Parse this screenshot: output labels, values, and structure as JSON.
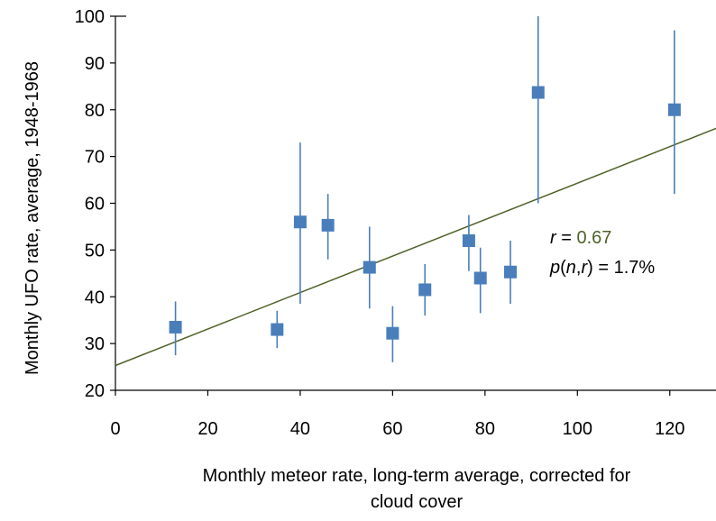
{
  "chart_data": {
    "type": "scatter",
    "title": "",
    "xlabel_lines": [
      "Monthly meteor rate, long-term average, corrected for",
      "cloud cover"
    ],
    "ylabel": "Monthly UFO rate, average, 1948-1968",
    "xlim": [
      0,
      130
    ],
    "ylim": [
      20,
      100
    ],
    "xticks": [
      0,
      20,
      40,
      60,
      80,
      100,
      120
    ],
    "yticks": [
      20,
      30,
      40,
      50,
      60,
      70,
      80,
      90,
      100
    ],
    "grid": false,
    "legend": "none",
    "marker_color": "#4a7ebb",
    "trend_color": "#4f6228",
    "points": [
      {
        "x": 13,
        "y": 33.5,
        "ylow": 27.5,
        "yhigh": 39
      },
      {
        "x": 35,
        "y": 33,
        "ylow": 29,
        "yhigh": 37
      },
      {
        "x": 40,
        "y": 56,
        "ylow": 38.5,
        "yhigh": 73
      },
      {
        "x": 46,
        "y": 55.3,
        "ylow": 48,
        "yhigh": 62
      },
      {
        "x": 55,
        "y": 46.3,
        "ylow": 37.5,
        "yhigh": 55
      },
      {
        "x": 60,
        "y": 32.2,
        "ylow": 26,
        "yhigh": 38
      },
      {
        "x": 67,
        "y": 41.5,
        "ylow": 36,
        "yhigh": 47
      },
      {
        "x": 76.5,
        "y": 52,
        "ylow": 45.5,
        "yhigh": 57.5
      },
      {
        "x": 79,
        "y": 44,
        "ylow": 36.5,
        "yhigh": 50.5
      },
      {
        "x": 85.5,
        "y": 45.3,
        "ylow": 38.5,
        "yhigh": 52
      },
      {
        "x": 91.5,
        "y": 83.7,
        "ylow": 60,
        "yhigh": 100
      },
      {
        "x": 121,
        "y": 80,
        "ylow": 62,
        "yhigh": 97
      }
    ],
    "trendline": {
      "x0": 0,
      "y0": 25.3,
      "x1": 130,
      "y1": 76
    },
    "annotation": {
      "r_var": "r",
      "r_eq": " = ",
      "r_value": "0.67",
      "p_var": "p",
      "p_open": "(",
      "p_n": "n",
      "p_comma": ",",
      "p_r": "r",
      "p_close": ")",
      "p_rest": " = 1.7%"
    }
  }
}
